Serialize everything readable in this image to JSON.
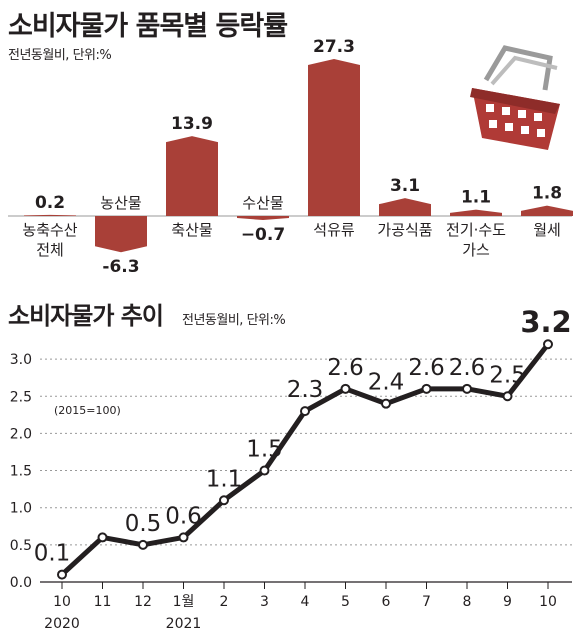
{
  "top": {
    "title": "소비자물가 품목별 등락률",
    "unit": "전년동월비, 단위:%"
  },
  "bottom": {
    "title": "소비자물가 추이",
    "unit": "전년동월비, 단위:%"
  },
  "colors": {
    "bar": "#a94038",
    "line": "#231f20",
    "grid": "#999999",
    "basket": "#b03a36"
  },
  "icons": [
    "shopping-basket-icon"
  ],
  "chart_data": [
    {
      "type": "bar",
      "title": "소비자물가 품목별 등락률",
      "categories": [
        "농축수산\n전체",
        "농산물",
        "축산물",
        "수산물",
        "석유류",
        "가공식품",
        "전기·수도\n가스",
        "월세"
      ],
      "category_lines": [
        [
          "농축수산",
          "전체"
        ],
        [
          "농산물"
        ],
        [
          "축산물"
        ],
        [
          "수산물"
        ],
        [
          "석유류"
        ],
        [
          "가공식품"
        ],
        [
          "전기·수도",
          "가스"
        ],
        [
          "월세"
        ]
      ],
      "values": [
        0.2,
        -6.3,
        13.9,
        -0.7,
        27.3,
        3.1,
        1.1,
        1.8
      ],
      "value_labels": [
        "0.2",
        "-6.3",
        "13.9",
        "−0.7",
        "27.3",
        "3.1",
        "1.1",
        "1.8"
      ],
      "ylim": [
        -8,
        30
      ],
      "grid": false
    },
    {
      "type": "line",
      "title": "소비자물가 추이",
      "x_labels": [
        "10",
        "11",
        "12",
        "1월",
        "2",
        "3",
        "4",
        "5",
        "6",
        "7",
        "8",
        "9",
        "10"
      ],
      "year_labels": [
        {
          "text": "2020",
          "index": 0
        },
        {
          "text": "2021",
          "index": 3
        }
      ],
      "values": [
        0.1,
        0.6,
        0.5,
        0.6,
        1.1,
        1.5,
        2.3,
        2.6,
        2.4,
        2.6,
        2.6,
        2.5,
        3.2
      ],
      "value_labels": [
        "0.1",
        "",
        "0.5",
        "0.6",
        "1.1",
        "1.5",
        "2.3",
        "2.6",
        "2.4",
        "2.6",
        "2.6",
        "2.5",
        "3.2"
      ],
      "y_ticks": [
        "0.0",
        "0.5",
        "1.0",
        "1.5",
        "2.0",
        "2.5",
        "3.0"
      ],
      "ylim": [
        0,
        3.4
      ],
      "annotation": "(2015=100)",
      "grid": true
    }
  ]
}
